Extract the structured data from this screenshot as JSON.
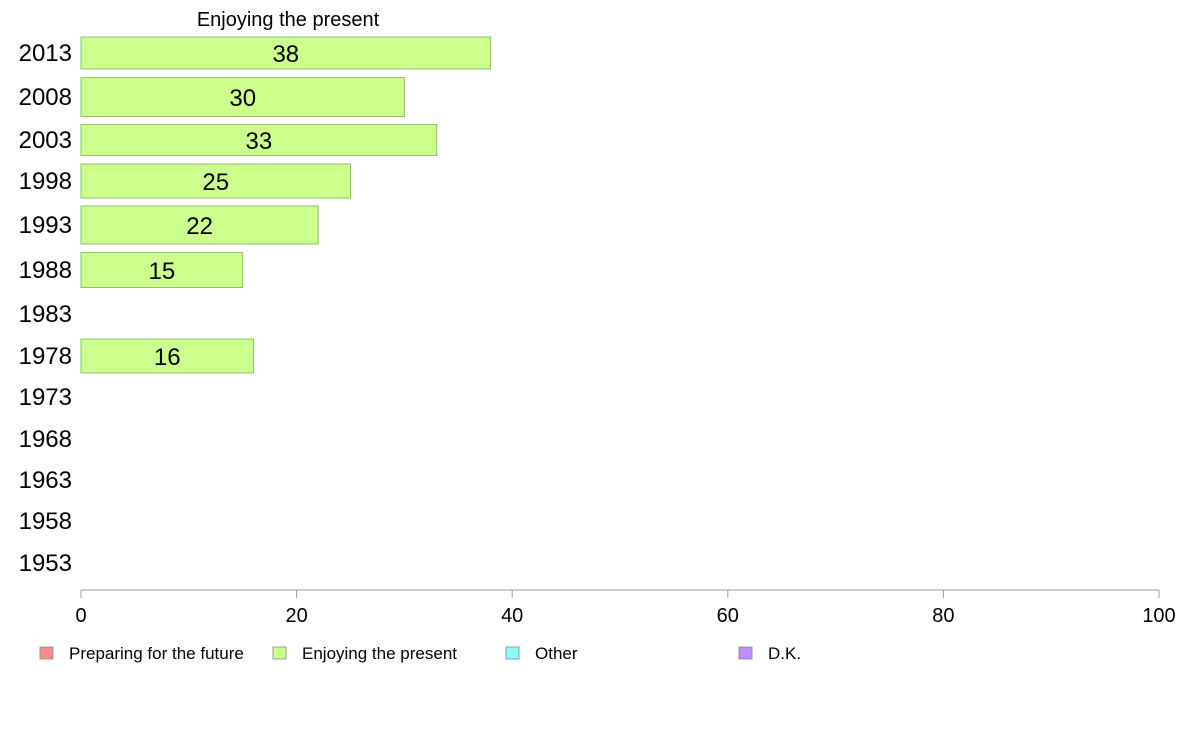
{
  "chart_data": {
    "type": "bar",
    "orientation": "horizontal",
    "title": "Enjoying the present",
    "categories": [
      "2013",
      "2008",
      "2003",
      "1998",
      "1993",
      "1988",
      "1983",
      "1978",
      "1973",
      "1968",
      "1963",
      "1958",
      "1953"
    ],
    "series": [
      {
        "name": "Enjoying the present",
        "values": [
          38,
          30,
          33,
          25,
          22,
          15,
          null,
          16,
          null,
          null,
          null,
          null,
          null
        ]
      }
    ],
    "data_labels": [
      "38",
      "30",
      "33",
      "25",
      "22",
      "15",
      "",
      "16",
      "",
      "",
      "",
      "",
      ""
    ],
    "xlim": [
      0,
      100
    ],
    "xticks": [
      "0",
      "20",
      "40",
      "60",
      "80",
      "100"
    ],
    "xlabel": "",
    "ylabel": "",
    "grid": false,
    "legend": {
      "placement": "bottom",
      "items": [
        {
          "label": "Preparing for the future",
          "color": "#ff8c8c"
        },
        {
          "label": "Enjoying the present",
          "color": "#ccff8c"
        },
        {
          "label": "Other",
          "color": "#8cffff"
        },
        {
          "label": "D.K.",
          "color": "#c08cff"
        }
      ]
    },
    "colors": {
      "bar_fill": "#ccff8c",
      "bar_stroke": "#8fbf6a",
      "axis": "#999999"
    }
  }
}
